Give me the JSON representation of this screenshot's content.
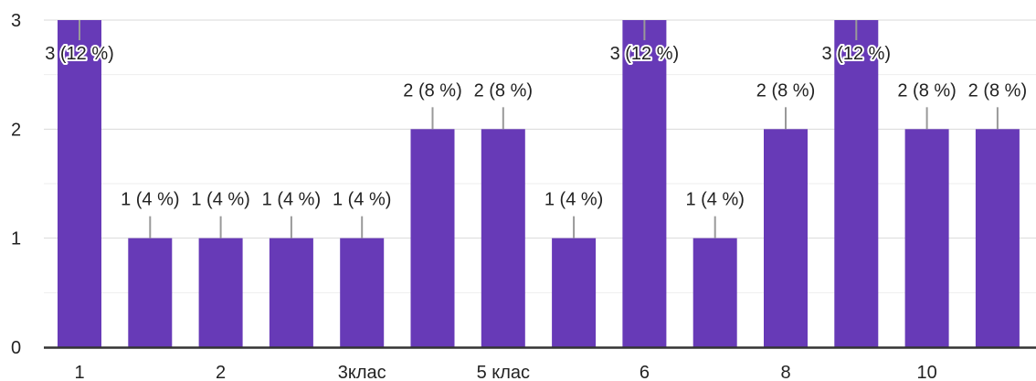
{
  "chart_data": {
    "type": "bar",
    "title": "",
    "xlabel": "",
    "ylabel": "",
    "ylim": [
      0,
      3
    ],
    "yticks": [
      "0",
      "1",
      "2",
      "3"
    ],
    "grid": true,
    "legend": "none",
    "bar_color": "#673ab7",
    "categories": [
      "1",
      "",
      "2",
      "",
      "3клас",
      "",
      "5 клас",
      "",
      "6",
      "",
      "8",
      "",
      "10",
      ""
    ],
    "values": [
      3,
      1,
      1,
      1,
      1,
      2,
      2,
      1,
      3,
      1,
      2,
      3,
      2,
      2
    ],
    "data_labels": [
      "3 (12 %)",
      "1 (4 %)",
      "1 (4 %)",
      "1 (4 %)",
      "1 (4 %)",
      "2 (8 %)",
      "2 (8 %)",
      "1 (4 %)",
      "3 (12 %)",
      "1 (4 %)",
      "2 (8 %)",
      "3 (12 %)",
      "2 (8 %)",
      "2 (8 %)"
    ]
  }
}
